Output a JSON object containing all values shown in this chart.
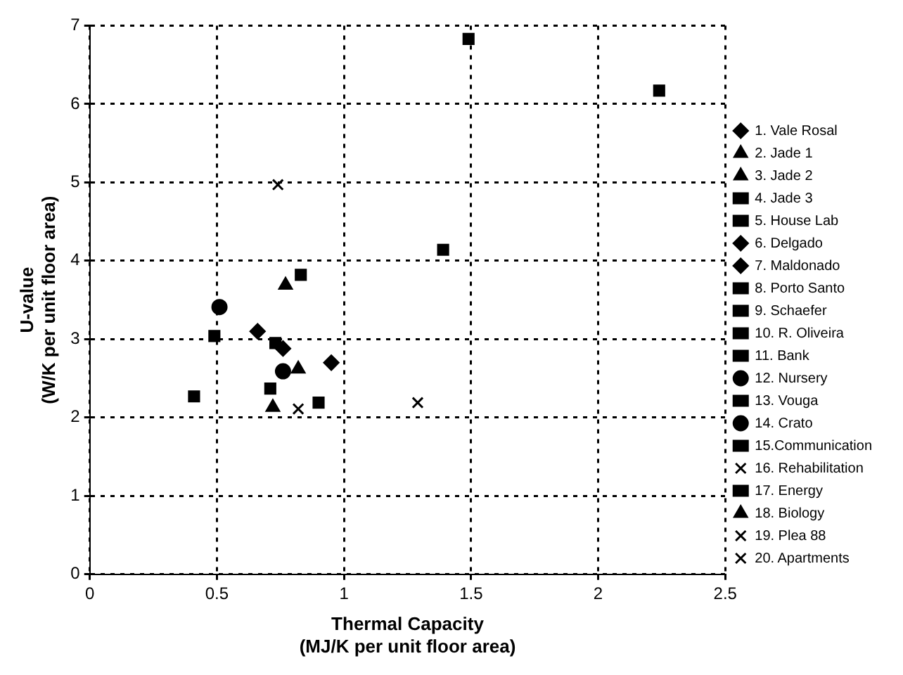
{
  "chart_data": {
    "type": "scatter",
    "xlabel": "Thermal Capacity\n(MJ/K per unit floor area)",
    "ylabel": "U-value\n(W/K per unit floor area)",
    "xlim": [
      0,
      2.5
    ],
    "xticks": [
      0,
      0.5,
      1,
      1.5,
      2,
      2.5
    ],
    "ylim": [
      0,
      7
    ],
    "yticks": [
      0,
      1,
      2,
      3,
      4,
      5,
      6,
      7
    ],
    "grid": true,
    "legend": "right",
    "series": [
      {
        "name": "1. Vale Rosal",
        "color": "#000000",
        "marker": "diamond",
        "x": [
          0.95
        ],
        "values": [
          2.7
        ]
      },
      {
        "name": "2. Jade 1",
        "color": "#000000",
        "marker": "triangle",
        "x": [
          0.82
        ],
        "values": [
          2.62
        ]
      },
      {
        "name": "3. Jade 2",
        "color": "#000000",
        "marker": "triangle",
        "x": [
          0.77
        ],
        "values": [
          3.69
        ]
      },
      {
        "name": "4. Jade 3",
        "color": "#000000",
        "marker": "square",
        "x": [
          0.9
        ],
        "values": [
          2.19
        ]
      },
      {
        "name": "5. House Lab",
        "color": "#000000",
        "marker": "square",
        "x": [
          1.39
        ],
        "values": [
          4.14
        ]
      },
      {
        "name": "6. Delgado",
        "color": "#000000",
        "marker": "diamond",
        "x": [
          0.76
        ],
        "values": [
          2.88
        ]
      },
      {
        "name": "7. Maldonado",
        "color": "#000000",
        "marker": "diamond",
        "x": [
          0.66
        ],
        "values": [
          3.1
        ]
      },
      {
        "name": "8. Porto Santo",
        "color": "#000000",
        "marker": "square",
        "x": [
          2.24
        ],
        "values": [
          6.17
        ]
      },
      {
        "name": "9. Schaefer",
        "color": "#000000",
        "marker": "square",
        "x": [
          1.49
        ],
        "values": [
          6.83
        ]
      },
      {
        "name": "10. R. Oliveira",
        "color": "#000000",
        "marker": "square",
        "x": [
          0.73
        ],
        "values": [
          2.95
        ]
      },
      {
        "name": "11. Bank",
        "color": "#000000",
        "marker": "square",
        "x": [
          0.71
        ],
        "values": [
          2.37
        ]
      },
      {
        "name": "12. Nursery",
        "color": "#000000",
        "marker": "circle",
        "x": [
          0.51
        ],
        "values": [
          3.41
        ]
      },
      {
        "name": "13. Vouga",
        "color": "#000000",
        "marker": "square",
        "x": [
          0.83
        ],
        "values": [
          3.82
        ]
      },
      {
        "name": "14. Crato",
        "color": "#000000",
        "marker": "circle",
        "x": [
          0.76
        ],
        "values": [
          2.59
        ]
      },
      {
        "name": "15.Communication",
        "color": "#000000",
        "marker": "square",
        "x": [
          0.41
        ],
        "values": [
          2.27
        ]
      },
      {
        "name": "16. Rehabilitation",
        "color": "#000000",
        "marker": "cross",
        "x": [
          0.74
        ],
        "values": [
          4.97
        ]
      },
      {
        "name": "17. Energy",
        "color": "#000000",
        "marker": "square",
        "x": [
          0.49
        ],
        "values": [
          3.04
        ]
      },
      {
        "name": "18. Biology",
        "color": "#000000",
        "marker": "triangle",
        "x": [
          0.72
        ],
        "values": [
          2.13
        ]
      },
      {
        "name": "19. Plea 88",
        "color": "#000000",
        "marker": "cross",
        "x": [
          0.82
        ],
        "values": [
          2.11
        ]
      },
      {
        "name": "20. Apartments",
        "color": "#000000",
        "marker": "cross",
        "x": [
          1.29
        ],
        "values": [
          2.19
        ]
      }
    ]
  }
}
